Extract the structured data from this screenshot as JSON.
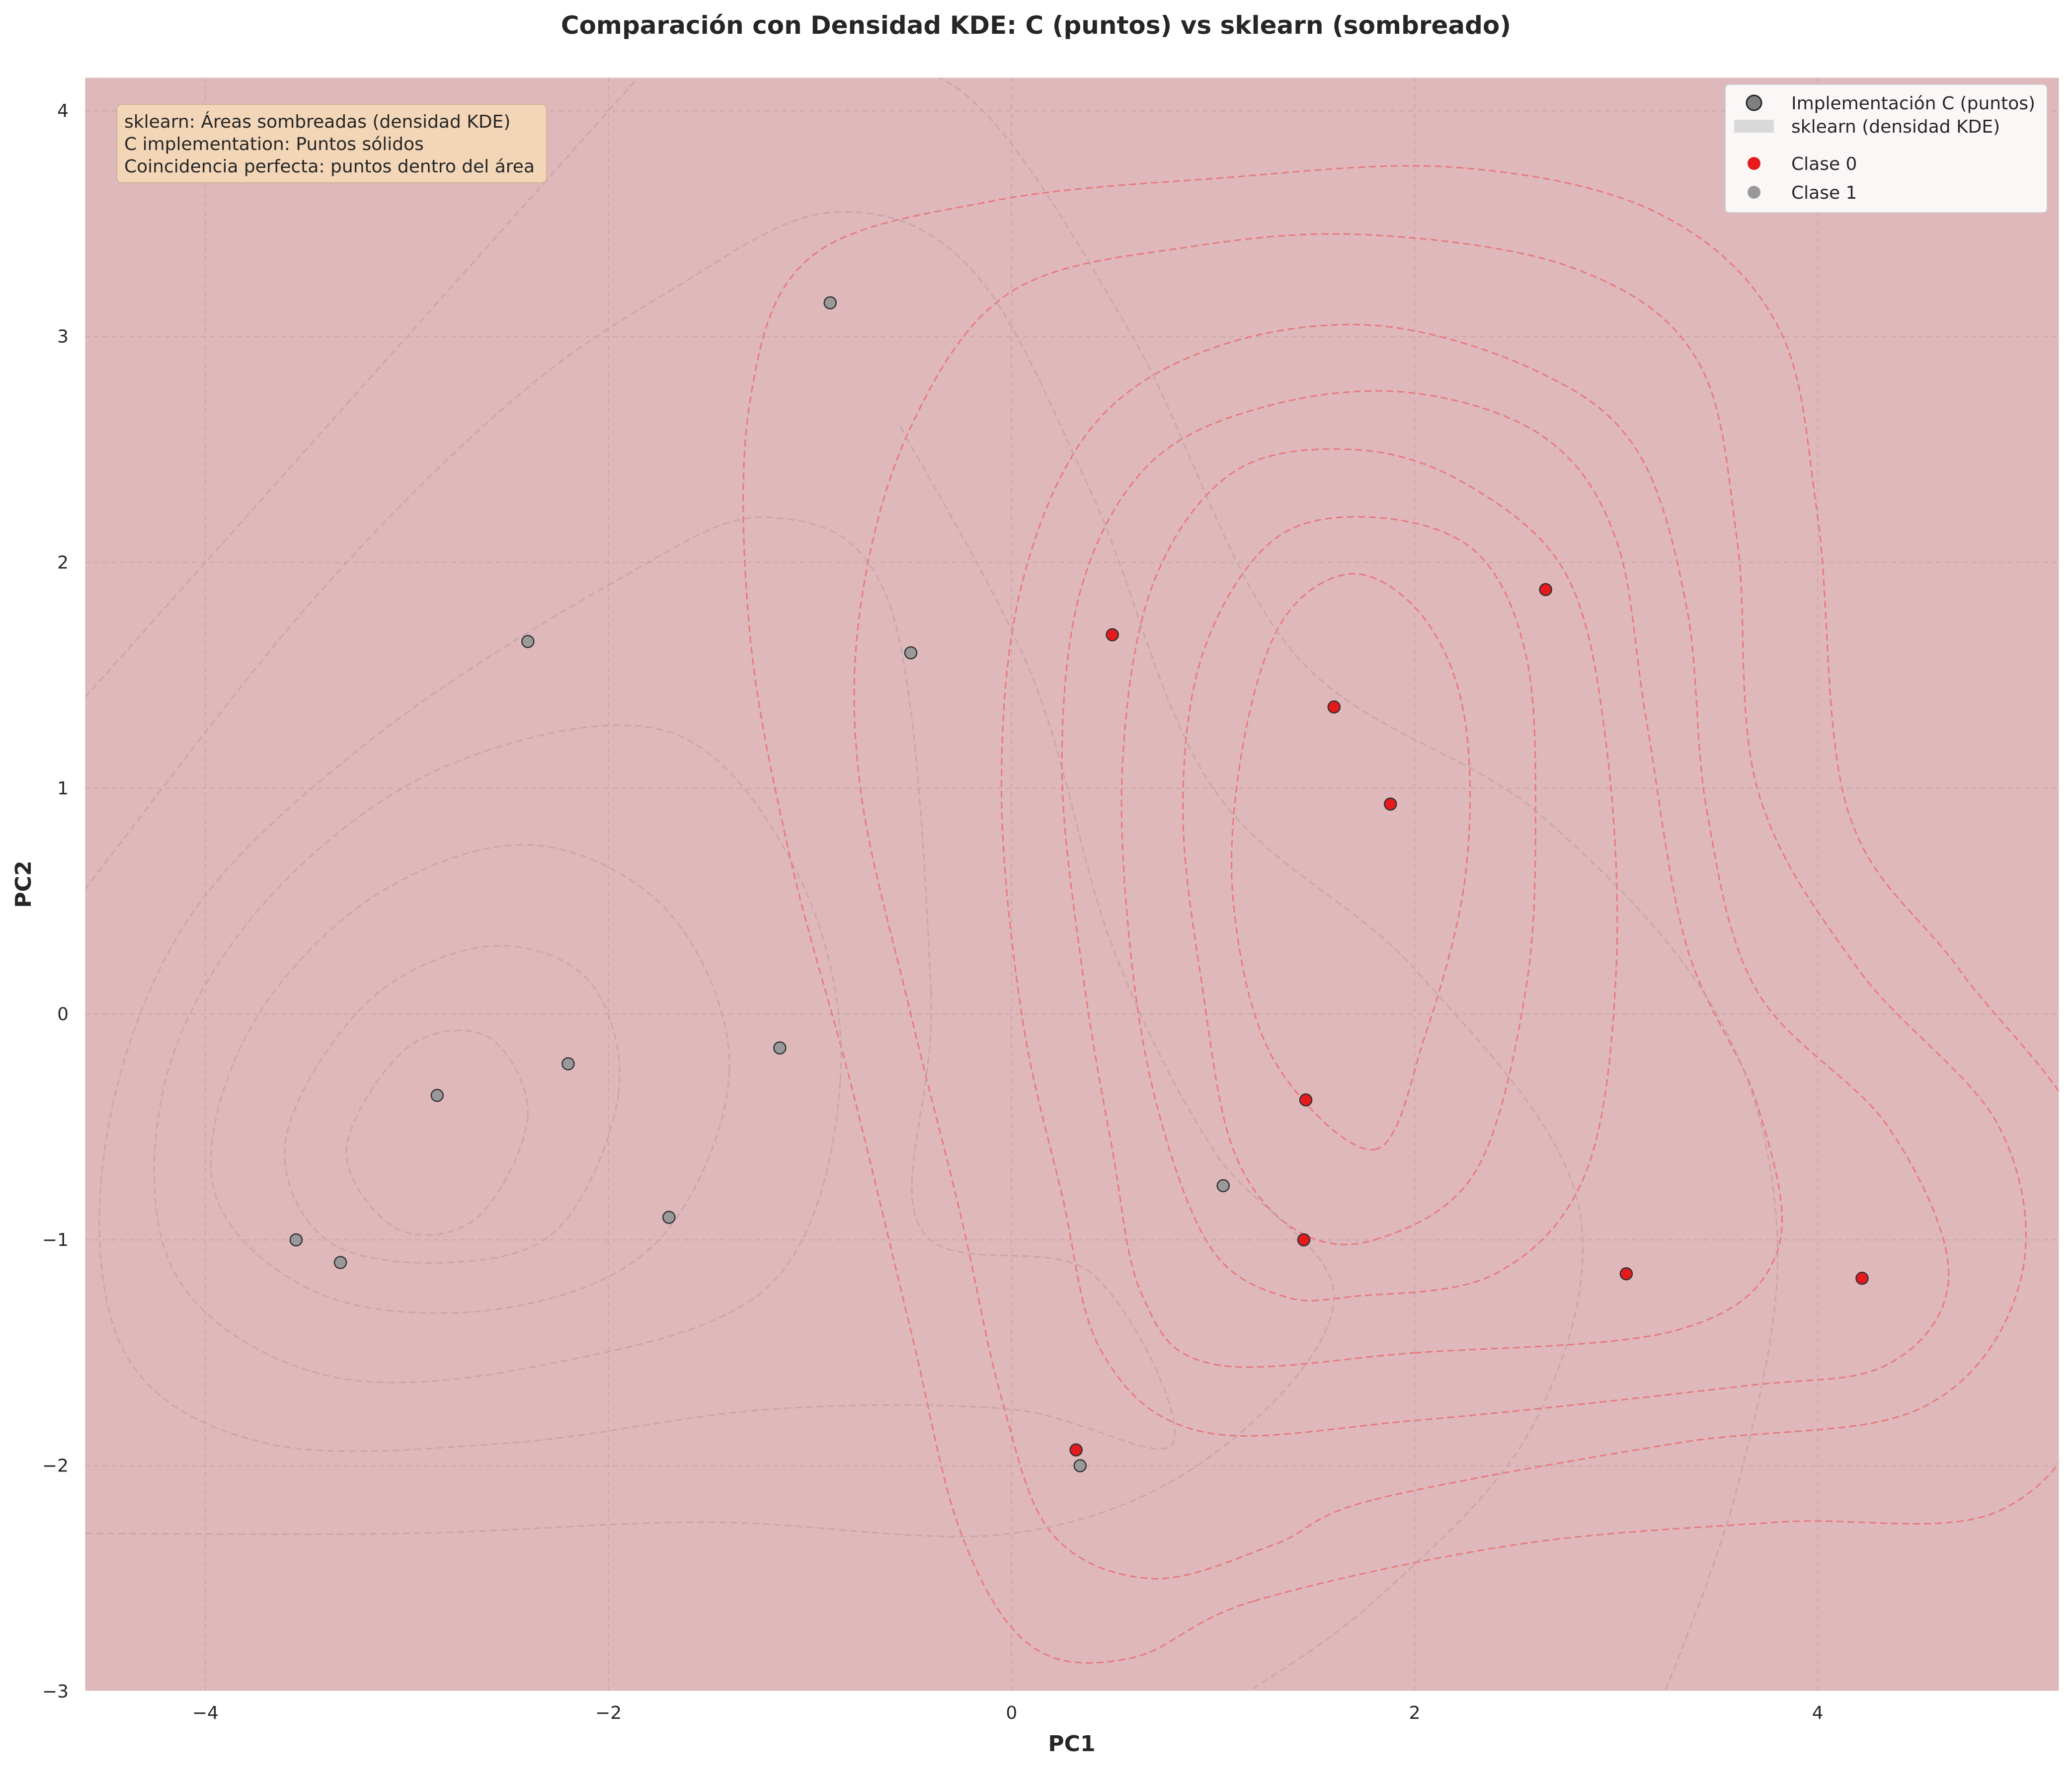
{
  "chart_data": {
    "type": "scatter",
    "title": "Comparación con Densidad KDE: C (puntos) vs sklearn (sombreado)",
    "xlabel": "PC1",
    "ylabel": "PC2",
    "xlim": [
      -4.6,
      5.2
    ],
    "ylim": [
      -3.0,
      4.15
    ],
    "xticks": [
      -4,
      -2,
      0,
      2,
      4
    ],
    "xtick_labels": [
      "−4",
      "−2",
      "0",
      "2",
      "4"
    ],
    "yticks": [
      -3,
      -2,
      -1,
      0,
      1,
      2,
      3,
      4
    ],
    "ytick_labels": [
      "−3",
      "−2",
      "−1",
      "0",
      "1",
      "2",
      "3",
      "4"
    ],
    "grid": true,
    "background_color": "#dfb8bb",
    "legend_position": "top-right",
    "legend": [
      {
        "label": "Implementación C (puntos)",
        "marker": "circle-outline",
        "color": "#808080"
      },
      {
        "label": "sklearn (densidad KDE)",
        "marker": "patch",
        "color": "#d9d9d9"
      },
      {
        "label": "Clase 0",
        "marker": "circle",
        "color": "#e41a1c"
      },
      {
        "label": "Clase 1",
        "marker": "circle",
        "color": "#999999"
      }
    ],
    "annotation_lines": [
      "sklearn: Áreas sombreadas (densidad KDE)",
      "C implementation: Puntos sólidos",
      "Coincidencia perfecta: puntos dentro del área"
    ],
    "series": [
      {
        "name": "Clase 0",
        "color": "#e41a1c",
        "x": [
          0.5,
          2.65,
          1.6,
          1.88,
          1.46,
          1.45,
          3.05,
          4.22,
          0.32
        ],
        "y": [
          1.68,
          1.88,
          1.36,
          0.93,
          -0.38,
          -1.0,
          -1.15,
          -1.17,
          -1.93
        ]
      },
      {
        "name": "Clase 1",
        "color": "#999999",
        "x": [
          -0.9,
          -2.4,
          -0.5,
          -2.2,
          -2.85,
          -1.15,
          -1.7,
          -3.55,
          -3.33,
          1.05,
          0.34
        ],
        "y": [
          3.15,
          1.65,
          1.6,
          -0.22,
          -0.36,
          -0.15,
          -0.9,
          -1.0,
          -1.1,
          -0.76,
          -2.0
        ]
      }
    ],
    "density_contours": [
      {
        "class": "Clase 0",
        "color": "#e8737a",
        "levels": [
          [
            [
              1.8,
              -0.6
            ],
            [
              2.05,
              -0.1
            ],
            [
              2.25,
              0.6
            ],
            [
              2.25,
              1.3
            ],
            [
              2.05,
              1.75
            ],
            [
              1.7,
              1.95
            ],
            [
              1.35,
              1.75
            ],
            [
              1.15,
              1.2
            ],
            [
              1.1,
              0.5
            ],
            [
              1.3,
              -0.2
            ]
          ],
          [
            [
              1.8,
              -1.0
            ],
            [
              2.3,
              -0.7
            ],
            [
              2.55,
              0.1
            ],
            [
              2.6,
              0.9
            ],
            [
              2.55,
              1.6
            ],
            [
              2.3,
              2.05
            ],
            [
              1.8,
              2.2
            ],
            [
              1.3,
              2.1
            ],
            [
              0.95,
              1.6
            ],
            [
              0.85,
              0.9
            ],
            [
              0.95,
              0.1
            ],
            [
              1.1,
              -0.6
            ],
            [
              1.4,
              -0.95
            ]
          ],
          [
            [
              1.7,
              -1.25
            ],
            [
              2.4,
              -1.15
            ],
            [
              2.85,
              -0.7
            ],
            [
              3.0,
              0.2
            ],
            [
              2.95,
              1.2
            ],
            [
              2.75,
              1.95
            ],
            [
              2.25,
              2.35
            ],
            [
              1.7,
              2.5
            ],
            [
              1.1,
              2.4
            ],
            [
              0.7,
              1.9
            ],
            [
              0.55,
              1.1
            ],
            [
              0.6,
              0.2
            ],
            [
              0.75,
              -0.5
            ],
            [
              1.0,
              -1.05
            ],
            [
              1.35,
              -1.25
            ]
          ],
          [
            [
              2.0,
              -1.5
            ],
            [
              3.3,
              -1.4
            ],
            [
              3.8,
              -1.05
            ],
            [
              3.7,
              -0.4
            ],
            [
              3.35,
              0.3
            ],
            [
              3.15,
              1.3
            ],
            [
              3.0,
              2.1
            ],
            [
              2.65,
              2.55
            ],
            [
              2.0,
              2.75
            ],
            [
              1.3,
              2.7
            ],
            [
              0.7,
              2.45
            ],
            [
              0.35,
              1.9
            ],
            [
              0.25,
              1.1
            ],
            [
              0.35,
              0.2
            ],
            [
              0.5,
              -0.6
            ],
            [
              0.65,
              -1.25
            ],
            [
              1.0,
              -1.55
            ]
          ],
          [
            [
              2.0,
              -1.8
            ],
            [
              3.6,
              -1.65
            ],
            [
              4.35,
              -1.55
            ],
            [
              4.65,
              -1.15
            ],
            [
              4.35,
              -0.5
            ],
            [
              3.7,
              0.1
            ],
            [
              3.45,
              0.9
            ],
            [
              3.35,
              1.8
            ],
            [
              3.1,
              2.5
            ],
            [
              2.6,
              2.85
            ],
            [
              1.8,
              3.05
            ],
            [
              1.0,
              2.95
            ],
            [
              0.4,
              2.6
            ],
            [
              0.05,
              1.9
            ],
            [
              -0.05,
              1.0
            ],
            [
              0.05,
              0.0
            ],
            [
              0.25,
              -0.8
            ],
            [
              0.45,
              -1.5
            ],
            [
              0.95,
              -1.85
            ]
          ],
          [
            [
              1.8,
              -2.15
            ],
            [
              3.3,
              -1.9
            ],
            [
              4.5,
              -1.75
            ],
            [
              5.0,
              -1.2
            ],
            [
              4.9,
              -0.5
            ],
            [
              4.2,
              0.2
            ],
            [
              3.7,
              1.0
            ],
            [
              3.6,
              2.1
            ],
            [
              3.4,
              2.9
            ],
            [
              2.8,
              3.3
            ],
            [
              1.8,
              3.45
            ],
            [
              0.9,
              3.4
            ],
            [
              0.0,
              3.2
            ],
            [
              -0.5,
              2.6
            ],
            [
              -0.75,
              1.8
            ],
            [
              -0.75,
              1.0
            ],
            [
              -0.5,
              0.0
            ],
            [
              -0.25,
              -0.9
            ],
            [
              -0.05,
              -1.7
            ],
            [
              0.2,
              -2.3
            ],
            [
              0.7,
              -2.5
            ],
            [
              1.3,
              -2.35
            ]
          ],
          [
            [
              1.2,
              -2.6
            ],
            [
              2.5,
              -2.35
            ],
            [
              3.8,
              -2.25
            ],
            [
              4.9,
              -2.2
            ],
            [
              5.4,
              -1.6
            ],
            [
              5.35,
              -0.6
            ],
            [
              4.7,
              0.2
            ],
            [
              4.15,
              0.9
            ],
            [
              4.0,
              2.2
            ],
            [
              3.8,
              3.05
            ],
            [
              3.2,
              3.55
            ],
            [
              2.2,
              3.75
            ],
            [
              1.0,
              3.7
            ],
            [
              -0.1,
              3.6
            ],
            [
              -1.0,
              3.35
            ],
            [
              -1.3,
              2.7
            ],
            [
              -1.3,
              1.7
            ],
            [
              -1.1,
              0.7
            ],
            [
              -0.8,
              -0.3
            ],
            [
              -0.5,
              -1.4
            ],
            [
              -0.25,
              -2.3
            ],
            [
              0.1,
              -2.8
            ],
            [
              0.6,
              -2.85
            ]
          ]
        ]
      },
      {
        "class": "Clase 1",
        "color": "#c2a0a3",
        "levels": [
          [
            [
              -2.4,
              -0.45
            ],
            [
              -2.65,
              -0.9
            ],
            [
              -3.05,
              -0.95
            ],
            [
              -3.3,
              -0.6
            ],
            [
              -3.0,
              -0.15
            ],
            [
              -2.6,
              -0.1
            ]
          ],
          [
            [
              -1.95,
              -0.35
            ],
            [
              -2.25,
              -0.95
            ],
            [
              -2.8,
              -1.1
            ],
            [
              -3.4,
              -1.0
            ],
            [
              -3.6,
              -0.55
            ],
            [
              -3.2,
              0.05
            ],
            [
              -2.6,
              0.3
            ],
            [
              -2.1,
              0.15
            ]
          ],
          [
            [
              -1.4,
              -0.25
            ],
            [
              -1.75,
              -1.0
            ],
            [
              -2.5,
              -1.3
            ],
            [
              -3.4,
              -1.25
            ],
            [
              -3.95,
              -0.8
            ],
            [
              -3.8,
              -0.1
            ],
            [
              -3.2,
              0.5
            ],
            [
              -2.4,
              0.75
            ],
            [
              -1.7,
              0.45
            ]
          ],
          [
            [
              -0.85,
              -0.3
            ],
            [
              -1.2,
              -1.2
            ],
            [
              -2.3,
              -1.55
            ],
            [
              -3.4,
              -1.6
            ],
            [
              -4.15,
              -1.15
            ],
            [
              -4.2,
              -0.3
            ],
            [
              -3.7,
              0.5
            ],
            [
              -2.8,
              1.1
            ],
            [
              -1.7,
              1.25
            ],
            [
              -1.05,
              0.6
            ]
          ],
          [
            [
              -0.4,
              0.1
            ],
            [
              -0.45,
              -0.95
            ],
            [
              0.4,
              -1.15
            ],
            [
              0.8,
              -1.9
            ],
            [
              0.0,
              -1.75
            ],
            [
              -1.2,
              -1.75
            ],
            [
              -2.5,
              -1.9
            ],
            [
              -3.7,
              -1.9
            ],
            [
              -4.4,
              -1.5
            ],
            [
              -4.5,
              -0.6
            ],
            [
              -4.1,
              0.4
            ],
            [
              -3.2,
              1.2
            ],
            [
              -2.0,
              1.9
            ],
            [
              -1.2,
              2.2
            ],
            [
              -0.6,
              1.8
            ]
          ],
          [
            [
              -0.55,
              2.6
            ],
            [
              0.1,
              1.5
            ],
            [
              0.5,
              0.3
            ],
            [
              1.0,
              -0.6
            ],
            [
              1.6,
              -1.25
            ],
            [
              1.0,
              -1.95
            ],
            [
              0.0,
              -2.3
            ],
            [
              -1.5,
              -2.25
            ],
            [
              -3.0,
              -2.3
            ],
            [
              -4.6,
              -2.3
            ]
          ],
          [
            [
              -4.6,
              0.55
            ],
            [
              -3.5,
              1.8
            ],
            [
              -2.5,
              2.7
            ],
            [
              -1.7,
              3.2
            ],
            [
              -0.9,
              3.55
            ],
            [
              -0.2,
              3.3
            ],
            [
              0.4,
              2.3
            ],
            [
              1.0,
              1.0
            ],
            [
              2.0,
              0.2
            ],
            [
              2.8,
              -0.8
            ],
            [
              2.6,
              -1.8
            ],
            [
              1.8,
              -2.6
            ],
            [
              1.0,
              -3.1
            ]
          ],
          [
            [
              -4.6,
              1.4
            ],
            [
              -3.0,
              3.0
            ],
            [
              -1.8,
              4.2
            ]
          ],
          [
            [
              -1.0,
              4.3
            ],
            [
              -0.2,
              4.05
            ],
            [
              0.6,
              3.0
            ],
            [
              1.4,
              1.6
            ],
            [
              2.6,
              0.9
            ],
            [
              3.5,
              0.0
            ],
            [
              3.8,
              -1.0
            ],
            [
              3.6,
              -2.1
            ],
            [
              3.2,
              -3.1
            ]
          ]
        ]
      }
    ]
  }
}
